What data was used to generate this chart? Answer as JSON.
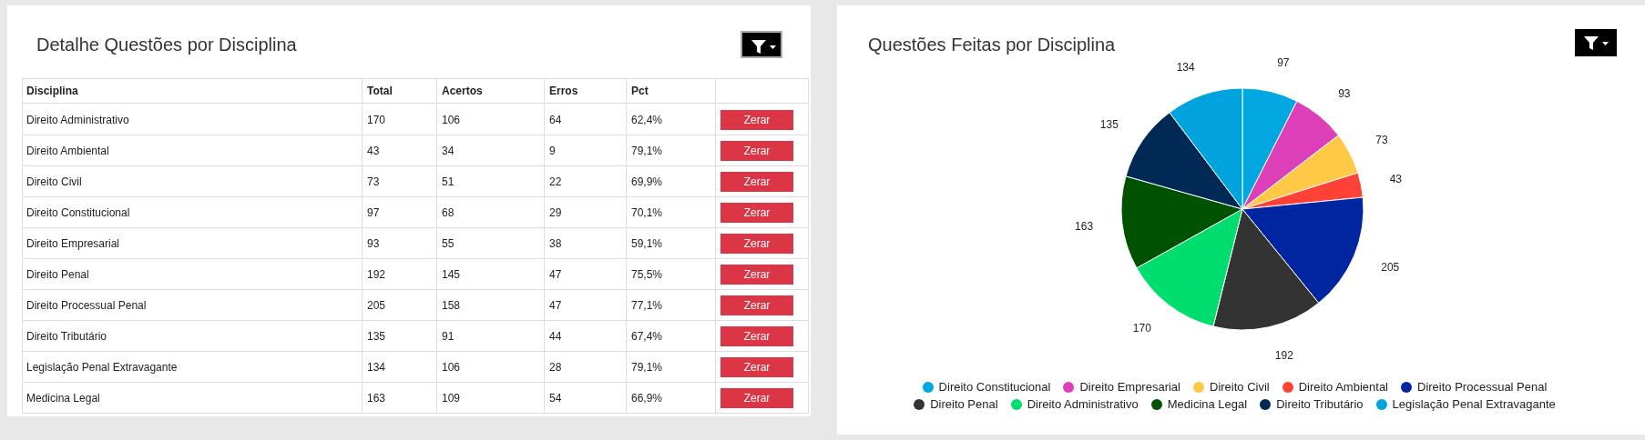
{
  "chart_data": [
    {
      "type": "other",
      "title": "Detalhe Questões por Disciplina",
      "xlabel": "Disciplina",
      "data_labels": true,
      "categories": [
        "Direito Administrativo",
        "Direito Ambiental",
        "Direito Civil",
        "Direito Constitucional",
        "Direito Empresarial",
        "Direito Penal",
        "Direito Processual Penal",
        "Direito Tributário",
        "Legislação Penal Extravagante",
        "Medicina Legal"
      ],
      "series": [
        {
          "name": "Total",
          "values": [
            170,
            43,
            73,
            97,
            93,
            192,
            205,
            135,
            134,
            163
          ]
        },
        {
          "name": "Acertos",
          "values": [
            106,
            34,
            51,
            68,
            55,
            145,
            158,
            91,
            106,
            109
          ]
        },
        {
          "name": "Erros",
          "values": [
            64,
            9,
            22,
            29,
            38,
            47,
            47,
            44,
            28,
            54
          ]
        },
        {
          "name": "Pct",
          "values": [
            62.4,
            79.1,
            69.9,
            70.1,
            59.1,
            75.5,
            77.1,
            67.4,
            79.1,
            66.9
          ],
          "value_labels": [
            "62,4%",
            "79,1%",
            "69,9%",
            "70,1%",
            "59,1%",
            "75,5%",
            "77,1%",
            "67,4%",
            "79,1%",
            "66,9%"
          ]
        }
      ],
      "annotations": [
        "Zerar",
        "Zerar",
        "Zerar",
        "Zerar",
        "Zerar",
        "Zerar",
        "Zerar",
        "Zerar",
        "Zerar",
        "Zerar"
      ]
    },
    {
      "type": "pie",
      "title": "Questões Feitas por Disciplina",
      "data_labels": true,
      "legend": "bottom",
      "categories": [
        "Direito Constitucional",
        "Direito Empresarial",
        "Direito Civil",
        "Direito Ambiental",
        "Direito Processual Penal",
        "Direito Penal",
        "Direito Administrativo",
        "Medicina Legal",
        "Direito Tributário",
        "Legislação Penal Extravagante"
      ],
      "values": [
        97,
        93,
        73,
        43,
        205,
        192,
        170,
        163,
        135,
        134
      ],
      "colors": [
        "#00a7e1",
        "#dd3fb8",
        "#ffc845",
        "#ff4136",
        "#0025a0",
        "#333333",
        "#00dd6f",
        "#005200",
        "#002a55",
        "#00a3de"
      ]
    }
  ]
}
